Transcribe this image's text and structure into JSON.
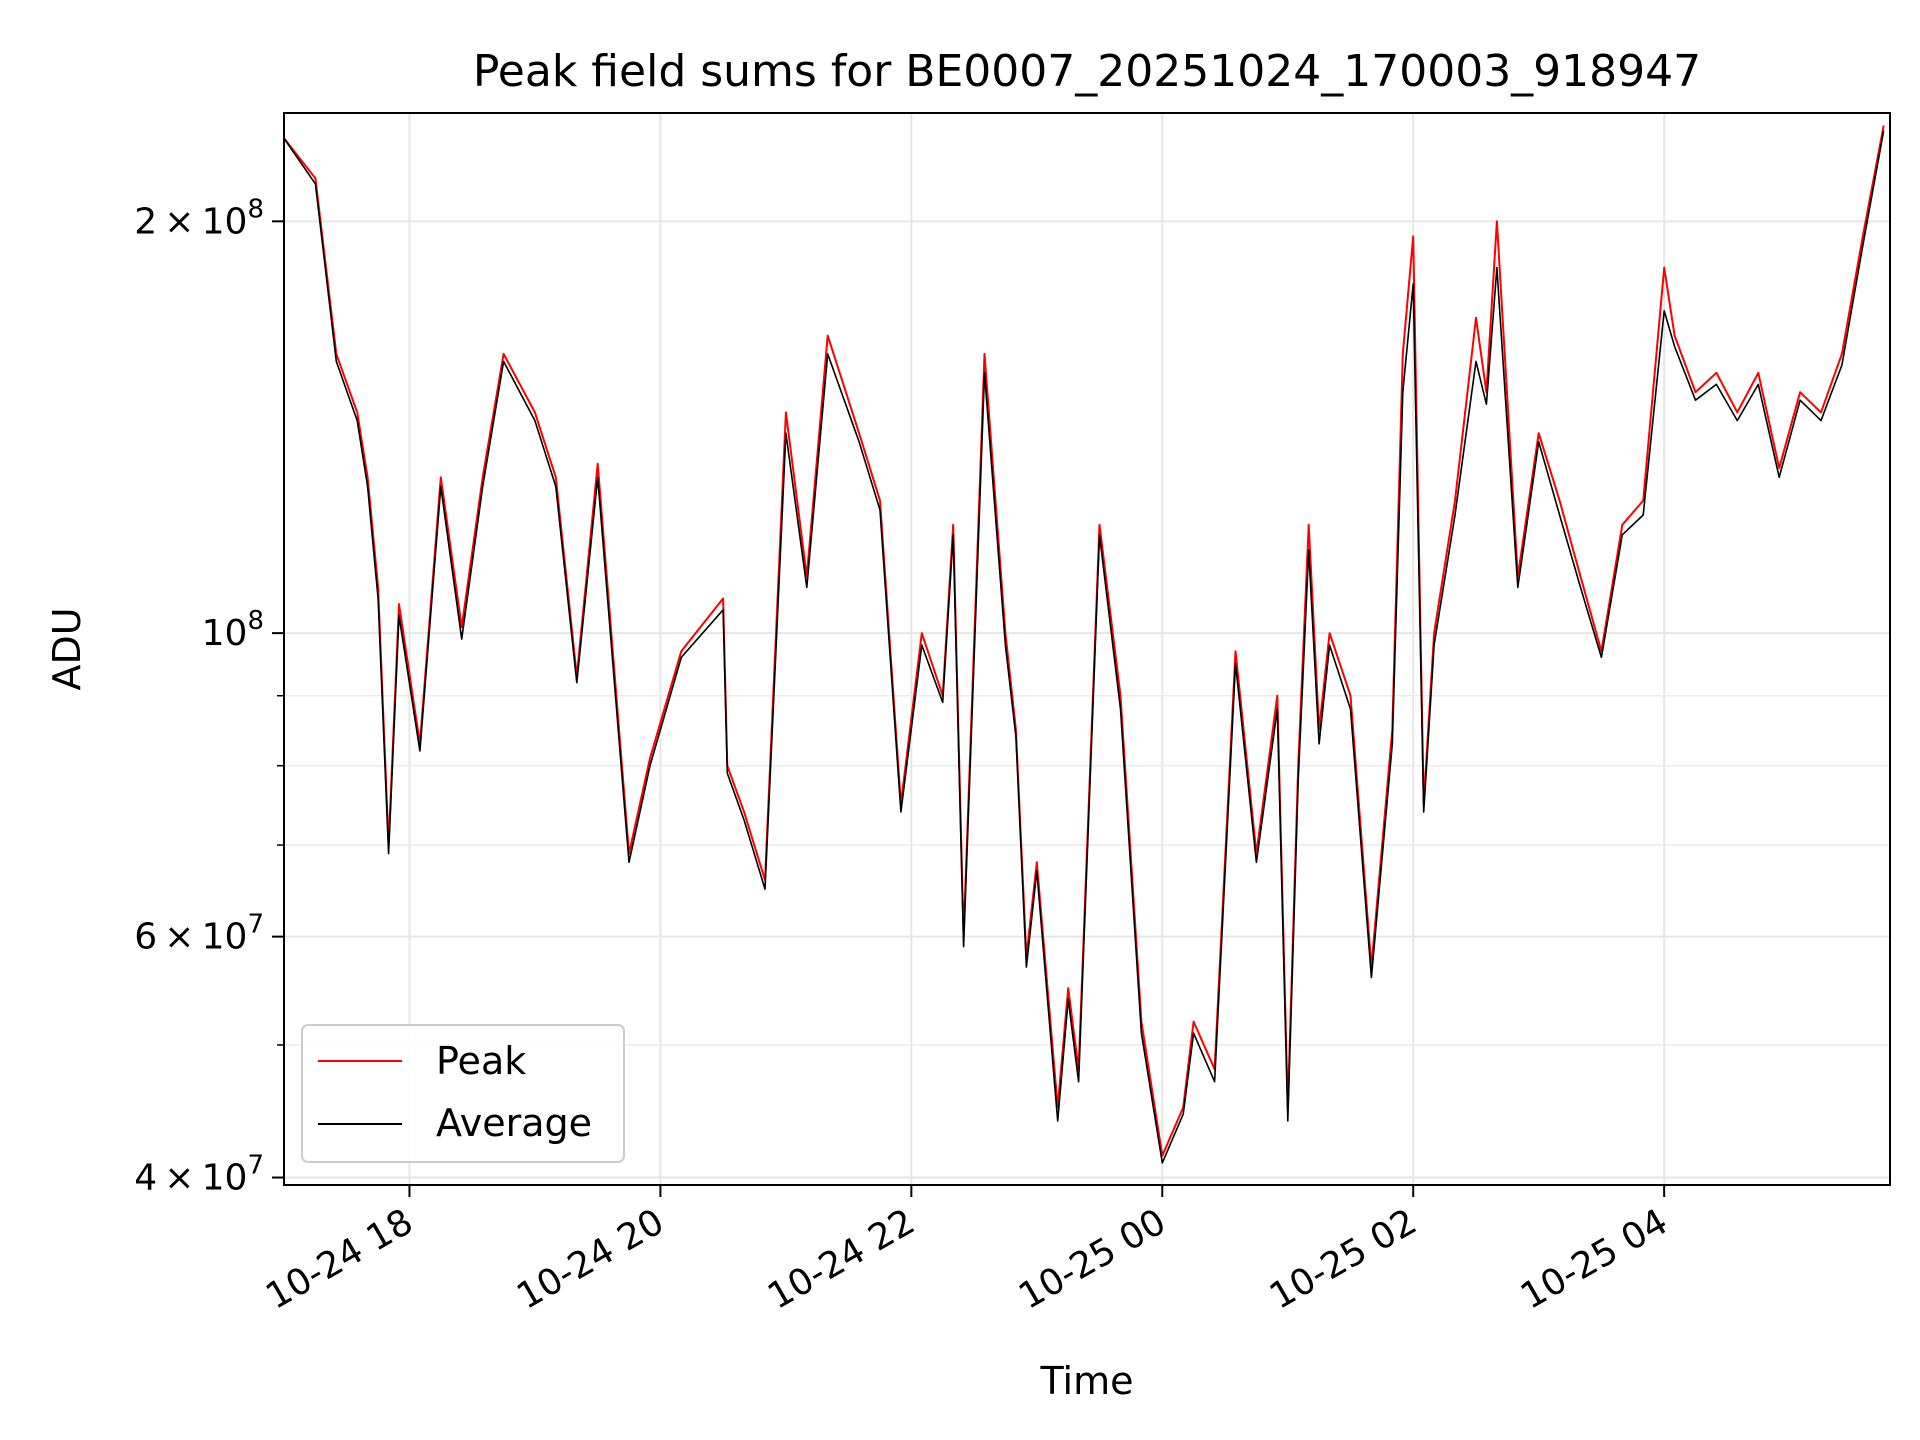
{
  "chart_data": {
    "type": "line",
    "title": "Peak field sums for BE0007_20251024_170003_918947",
    "xlabel": "Time",
    "ylabel": "ADU",
    "y_scale": "log",
    "ylim": [
      39500000,
      240000000
    ],
    "xlim": [
      "10-24 17:00",
      "10-25 05:48"
    ],
    "grid": true,
    "legend_position": "lower-left",
    "x_ticks": [
      {
        "t": "10-24 18:00",
        "label": "10-24 18"
      },
      {
        "t": "10-24 20:00",
        "label": "10-24 20"
      },
      {
        "t": "10-24 22:00",
        "label": "10-24 22"
      },
      {
        "t": "10-25 00:00",
        "label": "10-25 00"
      },
      {
        "t": "10-25 02:00",
        "label": "10-25 02"
      },
      {
        "t": "10-25 04:00",
        "label": "10-25 04"
      }
    ],
    "y_major_ticks": [
      {
        "value": 40000000,
        "mantissa": "4",
        "exponent": "7"
      },
      {
        "value": 60000000,
        "mantissa": "6",
        "exponent": "7"
      },
      {
        "value": 100000000,
        "mantissa": "",
        "exponent": "8"
      },
      {
        "value": 200000000,
        "mantissa": "2",
        "exponent": "8"
      }
    ],
    "y_minor_grid": [
      50000000,
      70000000,
      80000000,
      90000000
    ],
    "x": [
      "10-24 17:00",
      "10-24 17:15",
      "10-24 17:25",
      "10-24 17:35",
      "10-24 17:40",
      "10-24 17:45",
      "10-24 17:50",
      "10-24 17:55",
      "10-24 18:05",
      "10-24 18:15",
      "10-24 18:25",
      "10-24 18:35",
      "10-24 18:45",
      "10-24 19:00",
      "10-24 19:10",
      "10-24 19:20",
      "10-24 19:30",
      "10-24 19:45",
      "10-24 19:55",
      "10-24 20:10",
      "10-24 20:30",
      "10-24 20:32",
      "10-24 20:40",
      "10-24 20:50",
      "10-24 21:00",
      "10-24 21:10",
      "10-24 21:20",
      "10-24 21:35",
      "10-24 21:45",
      "10-24 21:55",
      "10-24 22:05",
      "10-24 22:15",
      "10-24 22:20",
      "10-24 22:25",
      "10-24 22:35",
      "10-24 22:45",
      "10-24 22:50",
      "10-24 22:55",
      "10-24 23:00",
      "10-24 23:10",
      "10-24 23:15",
      "10-24 23:20",
      "10-24 23:30",
      "10-24 23:40",
      "10-24 23:50",
      "10-25 00:00",
      "10-25 00:10",
      "10-25 00:15",
      "10-25 00:25",
      "10-25 00:35",
      "10-25 00:45",
      "10-25 00:55",
      "10-25 01:00",
      "10-25 01:05",
      "10-25 01:10",
      "10-25 01:15",
      "10-25 01:20",
      "10-25 01:30",
      "10-25 01:40",
      "10-25 01:50",
      "10-25 01:55",
      "10-25 02:00",
      "10-25 02:05",
      "10-25 02:10",
      "10-25 02:20",
      "10-25 02:30",
      "10-25 02:35",
      "10-25 02:40",
      "10-25 02:50",
      "10-25 03:00",
      "10-25 03:10",
      "10-25 03:20",
      "10-25 03:30",
      "10-25 03:40",
      "10-25 03:50",
      "10-25 04:00",
      "10-25 04:05",
      "10-25 04:15",
      "10-25 04:25",
      "10-25 04:35",
      "10-25 04:45",
      "10-25 04:55",
      "10-25 05:05",
      "10-25 05:15",
      "10-25 05:25",
      "10-25 05:35",
      "10-25 05:45"
    ],
    "series": [
      {
        "name": "Peak",
        "color": "#ff0000",
        "values": [
          230000000,
          215000000,
          160000000,
          145000000,
          130000000,
          108000000,
          70000000,
          105000000,
          83000000,
          130000000,
          101000000,
          130000000,
          160000000,
          145000000,
          130000000,
          93000000,
          133000000,
          69000000,
          81000000,
          97000000,
          106000000,
          80000000,
          74000000,
          66000000,
          145000000,
          110000000,
          165000000,
          140000000,
          125000000,
          75000000,
          100000000,
          90000000,
          120000000,
          60000000,
          160000000,
          100000000,
          85000000,
          58000000,
          68000000,
          45000000,
          55000000,
          48000000,
          120000000,
          90000000,
          52000000,
          41500000,
          45000000,
          52000000,
          48000000,
          97000000,
          69000000,
          90000000,
          45000000,
          80000000,
          120000000,
          85000000,
          100000000,
          90000000,
          57000000,
          85000000,
          160000000,
          195000000,
          75000000,
          100000000,
          125000000,
          170000000,
          150000000,
          200000000,
          110000000,
          140000000,
          125000000,
          110000000,
          97000000,
          120000000,
          125000000,
          185000000,
          165000000,
          150000000,
          155000000,
          145000000,
          155000000,
          132000000,
          150000000,
          145000000,
          160000000,
          195000000,
          235000000
        ]
      },
      {
        "name": "Average",
        "color": "#000000",
        "values": [
          230000000,
          213000000,
          158000000,
          143000000,
          128000000,
          106000000,
          69000000,
          103000000,
          82000000,
          128000000,
          99000000,
          128000000,
          158000000,
          143000000,
          128000000,
          92000000,
          130000000,
          68000000,
          80000000,
          96000000,
          104000000,
          79000000,
          73000000,
          65000000,
          140000000,
          108000000,
          160000000,
          138000000,
          123000000,
          74000000,
          98000000,
          89000000,
          118000000,
          59000000,
          155000000,
          98000000,
          84000000,
          57000000,
          67000000,
          44000000,
          54000000,
          47000000,
          118000000,
          88000000,
          51000000,
          41000000,
          44500000,
          51000000,
          47000000,
          95000000,
          68000000,
          88000000,
          44000000,
          78000000,
          115000000,
          83000000,
          98000000,
          88000000,
          56000000,
          83000000,
          150000000,
          180000000,
          74000000,
          98000000,
          122000000,
          158000000,
          147000000,
          185000000,
          108000000,
          138000000,
          122000000,
          108000000,
          96000000,
          118000000,
          122000000,
          172000000,
          162000000,
          148000000,
          152000000,
          143000000,
          152000000,
          130000000,
          148000000,
          143000000,
          157000000,
          192000000,
          233000000
        ]
      }
    ]
  }
}
